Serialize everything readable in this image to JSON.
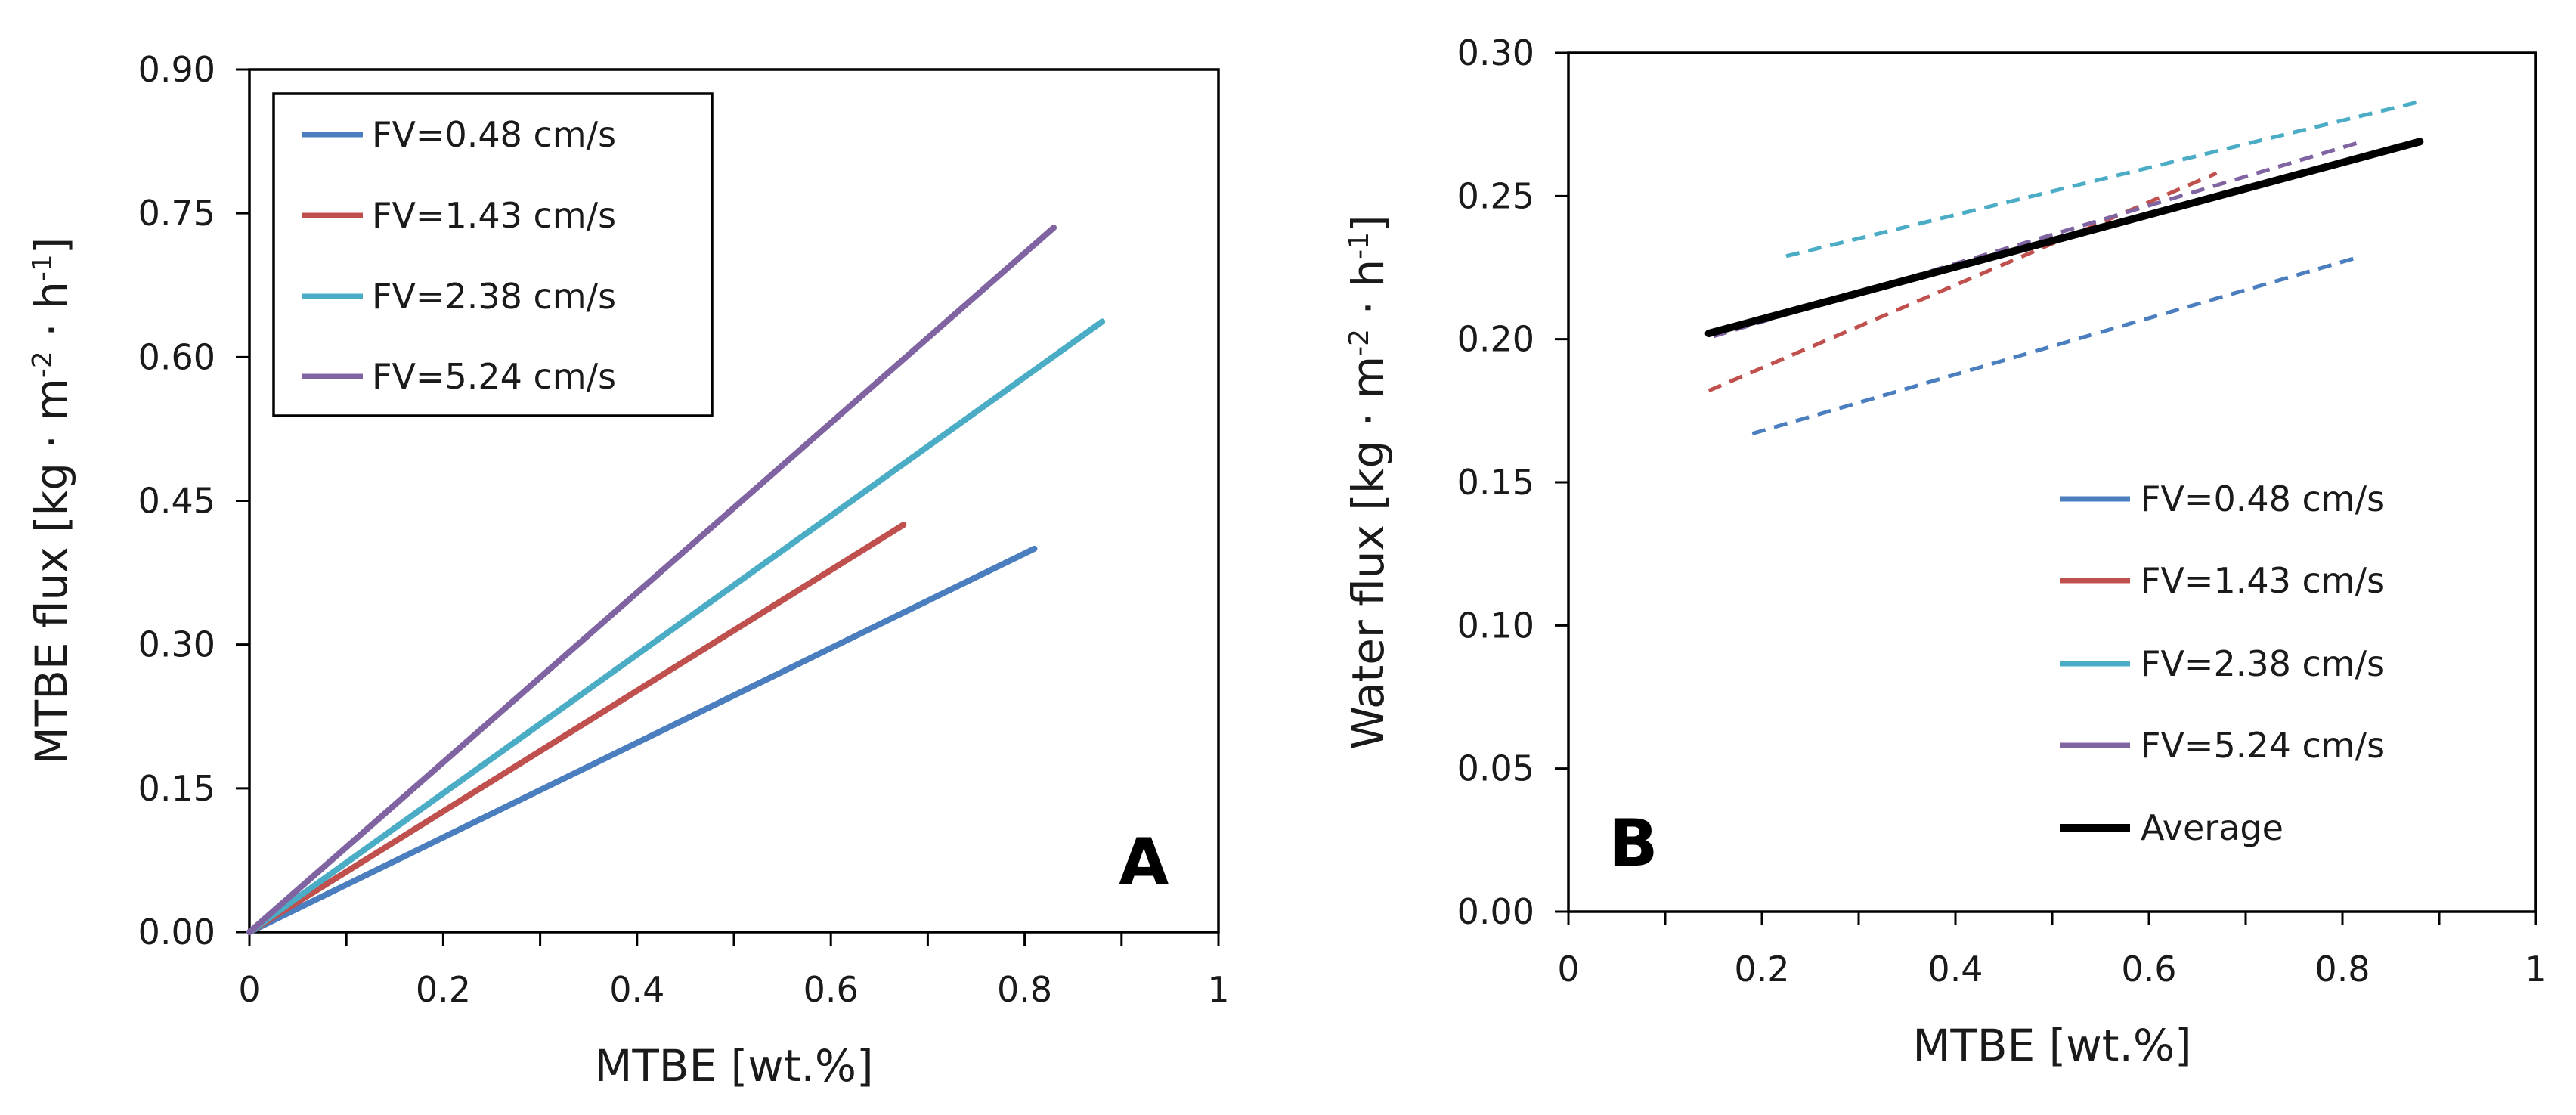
{
  "colors": {
    "blue": "#4a7ebf",
    "red": "#c0504d",
    "cyan": "#4bacc6",
    "purple": "#8064a2",
    "black": "#000000"
  },
  "chart_data": [
    {
      "type": "line",
      "panel": "A",
      "xlabel": "MTBE [wt.%]",
      "ylabel": "MTBE flux [kg · m-2 · h-1]",
      "ylabel_parts": {
        "pre": "MTBE flux [kg · m",
        "sup1": "-2",
        "mid": " · h",
        "sup2": "-1",
        "post": "]"
      },
      "xlim": [
        0,
        1
      ],
      "ylim": [
        0,
        0.9
      ],
      "xticks": [
        "0",
        "0.2",
        "0.4",
        "0.6",
        "0.8",
        "1"
      ],
      "xtick_values": [
        0,
        0.2,
        0.4,
        0.6,
        0.8,
        1
      ],
      "yticks": [
        "0.00",
        "0.15",
        "0.30",
        "0.45",
        "0.60",
        "0.75",
        "0.90"
      ],
      "ytick_values": [
        0,
        0.15,
        0.3,
        0.45,
        0.6,
        0.75,
        0.9
      ],
      "legend_placement": "top-left",
      "series": [
        {
          "name": "FV=0.48 cm/s",
          "color": "blue",
          "dash": false,
          "x": [
            0,
            0.81
          ],
          "y": [
            0,
            0.4
          ]
        },
        {
          "name": "FV=1.43 cm/s",
          "color": "red",
          "dash": false,
          "x": [
            0,
            0.675
          ],
          "y": [
            0,
            0.425
          ]
        },
        {
          "name": "FV=2.38 cm/s",
          "color": "cyan",
          "dash": false,
          "x": [
            0,
            0.88
          ],
          "y": [
            0,
            0.637
          ]
        },
        {
          "name": "FV=5.24 cm/s",
          "color": "purple",
          "dash": false,
          "x": [
            0,
            0.83
          ],
          "y": [
            0,
            0.735
          ]
        }
      ]
    },
    {
      "type": "line",
      "panel": "B",
      "xlabel": "MTBE [wt.%]",
      "ylabel": "Water flux [kg · m-2 · h-1]",
      "ylabel_parts": {
        "pre": "Water flux [kg · m",
        "sup1": "-2",
        "mid": " · h",
        "sup2": "-1",
        "post": "]"
      },
      "xlim": [
        0,
        1
      ],
      "ylim": [
        0,
        0.3
      ],
      "xticks": [
        "0",
        "0.2",
        "0.4",
        "0.6",
        "0.8",
        "1"
      ],
      "xtick_values": [
        0,
        0.2,
        0.4,
        0.6,
        0.8,
        1
      ],
      "yticks": [
        "0.00",
        "0.05",
        "0.10",
        "0.15",
        "0.20",
        "0.25",
        "0.30"
      ],
      "ytick_values": [
        0,
        0.05,
        0.1,
        0.15,
        0.2,
        0.25,
        0.3
      ],
      "legend_placement": "bottom-right",
      "series": [
        {
          "name": "FV=0.48 cm/s",
          "color": "blue",
          "dash": true,
          "x": [
            0.19,
            0.82
          ],
          "y": [
            0.167,
            0.229
          ]
        },
        {
          "name": "FV=1.43 cm/s",
          "color": "red",
          "dash": true,
          "x": [
            0.145,
            0.67
          ],
          "y": [
            0.182,
            0.258
          ]
        },
        {
          "name": "FV=2.38 cm/s",
          "color": "cyan",
          "dash": true,
          "x": [
            0.225,
            0.88
          ],
          "y": [
            0.229,
            0.283
          ]
        },
        {
          "name": "FV=5.24 cm/s",
          "color": "purple",
          "dash": true,
          "x": [
            0.15,
            0.82
          ],
          "y": [
            0.201,
            0.269
          ]
        },
        {
          "name": "Average",
          "color": "black",
          "dash": false,
          "bold": true,
          "x": [
            0.145,
            0.88
          ],
          "y": [
            0.202,
            0.269
          ]
        }
      ]
    }
  ]
}
